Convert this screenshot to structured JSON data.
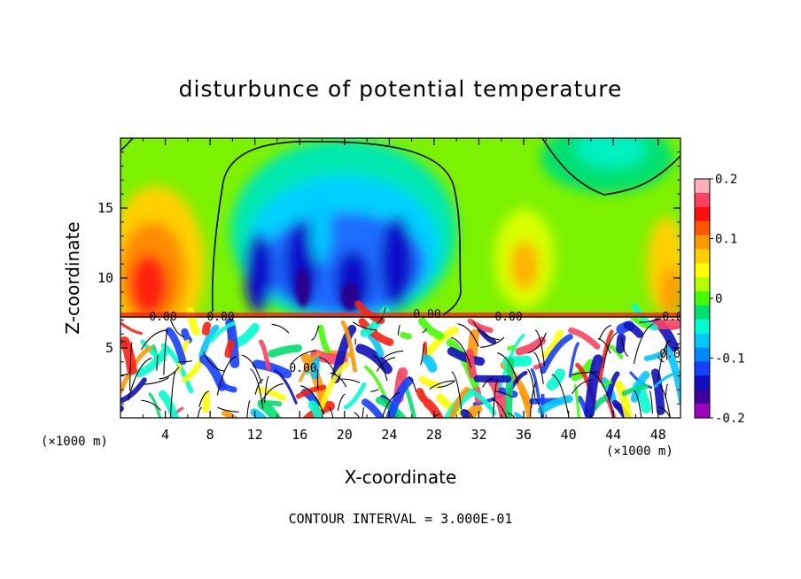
{
  "chart_data": {
    "type": "heatmap",
    "title": "disturbunce of potential temperature",
    "xlabel": "X-coordinate",
    "ylabel": "Z-coordinate",
    "x_unit_label": "(×1000 m)",
    "xlim": [
      0,
      50
    ],
    "ylim": [
      0,
      20
    ],
    "x_ticks": [
      4,
      8,
      12,
      16,
      20,
      24,
      28,
      32,
      36,
      40,
      44,
      48
    ],
    "y_ticks": [
      5,
      10,
      15
    ],
    "colorbar": {
      "range": [
        -0.2,
        0.2
      ],
      "tick_labels": [
        "0.2",
        "0.1",
        "0",
        "-0.1",
        "-0.2"
      ],
      "colors": [
        "#ffb0b8",
        "#ff4060",
        "#ff1010",
        "#ff5500",
        "#ff9900",
        "#ffd000",
        "#ffff00",
        "#b5ff00",
        "#40ff00",
        "#00e070",
        "#00ffd0",
        "#00c8ff",
        "#0088ff",
        "#1440ff",
        "#1010c0",
        "#4000a0",
        "#a000c0"
      ]
    },
    "contour_labels": [
      "0.00",
      "0.00",
      "0.00",
      "0.00",
      "0.00",
      "0.00",
      "0.00"
    ],
    "contour_interval": "CONTOUR INTERVAL = 3.000E-01"
  }
}
